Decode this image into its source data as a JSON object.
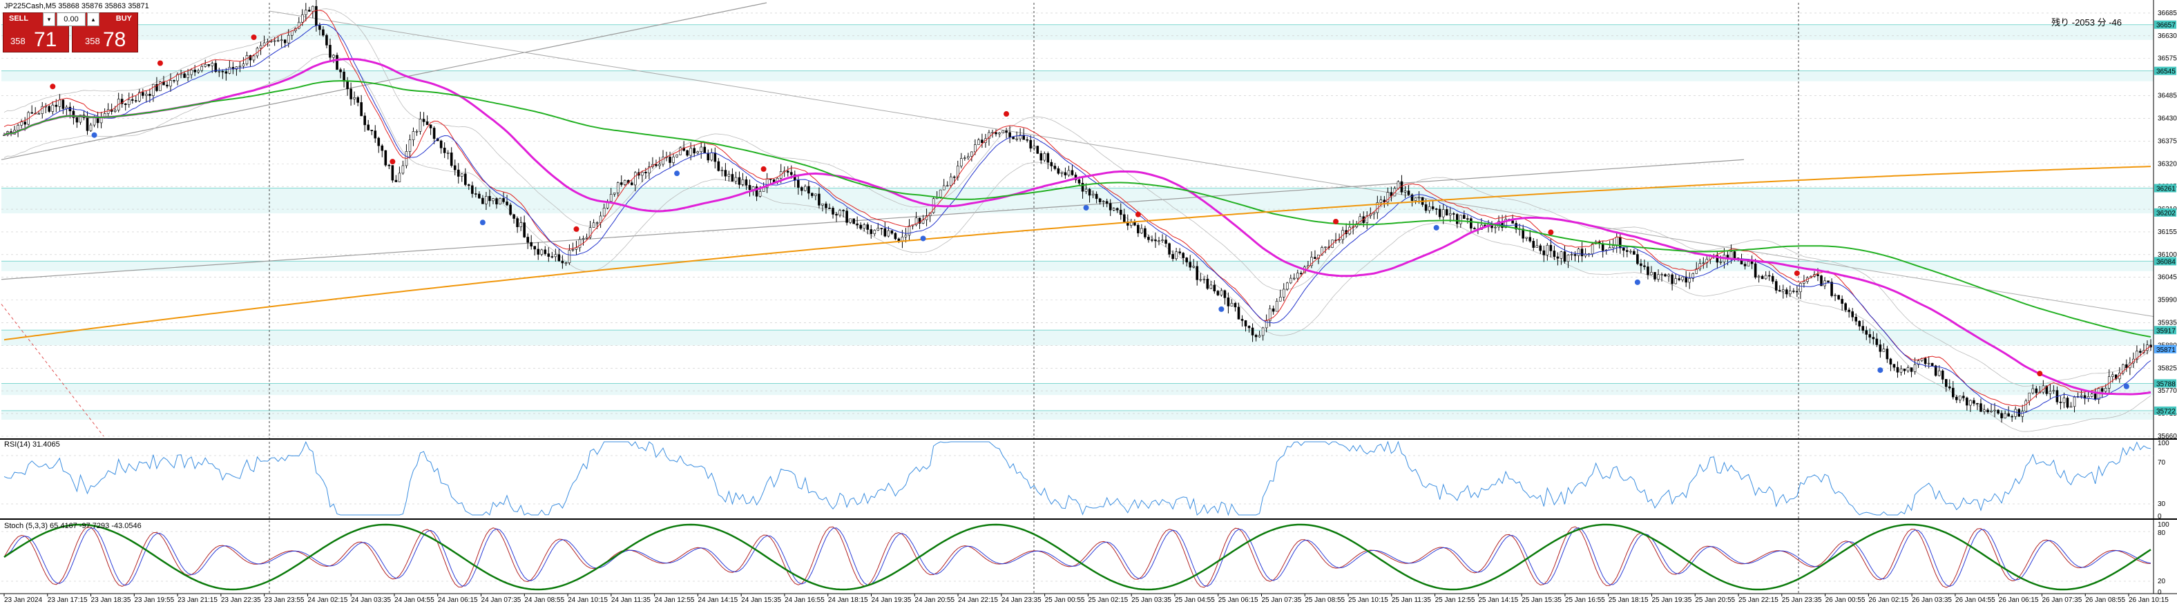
{
  "symbol_header": "JP225Cash,M5  35868 35876 35863 35871",
  "trade_panel": {
    "sell_label": "SELL",
    "buy_label": "BUY",
    "lot_value": "0.00",
    "sell_price_small": "358",
    "sell_price_big": "71",
    "buy_price_small": "358",
    "buy_price_big": "78"
  },
  "countdown": "残り -2053 分 -46",
  "rsi_title": "RSI(14) 31.4065",
  "stoch_title": "Stoch (5,3,3) 65.4167 -97.7293 -43.0546",
  "price_axis": [
    "36685",
    "36630",
    "36575",
    "36485",
    "36430",
    "36375",
    "36320",
    "36265",
    "36210",
    "36155",
    "36100",
    "36045",
    "35990",
    "35935",
    "35880",
    "35825",
    "35770",
    "35715",
    "35660"
  ],
  "right_badges": [
    {
      "text": "36657",
      "color": "#44c7c0"
    },
    {
      "text": "36545",
      "color": "#44c7c0"
    },
    {
      "text": "36261",
      "color": "#44c7c0"
    },
    {
      "text": "36202",
      "color": "#44c7c0"
    },
    {
      "text": "36084",
      "color": "#44c7c0"
    },
    {
      "text": "35917",
      "color": "#44c7c0"
    },
    {
      "text": "35871",
      "color": "#55aaff"
    },
    {
      "text": "35788",
      "color": "#44c7c0"
    },
    {
      "text": "35722",
      "color": "#44c7c0"
    }
  ],
  "rsi_axis": [
    "100",
    "70",
    "30",
    "0"
  ],
  "stoch_axis": [
    "100",
    "80",
    "20",
    "0"
  ],
  "time_axis": [
    "23 Jan 2024",
    "23 Jan 17:15",
    "23 Jan 18:35",
    "23 Jan 19:55",
    "23 Jan 21:15",
    "23 Jan 22:35",
    "23 Jan 23:55",
    "24 Jan 02:15",
    "24 Jan 03:35",
    "24 Jan 04:55",
    "24 Jan 06:15",
    "24 Jan 07:35",
    "24 Jan 08:55",
    "24 Jan 10:15",
    "24 Jan 11:35",
    "24 Jan 12:55",
    "24 Jan 14:15",
    "24 Jan 15:35",
    "24 Jan 16:55",
    "24 Jan 18:15",
    "24 Jan 19:35",
    "24 Jan 20:55",
    "24 Jan 22:15",
    "24 Jan 23:35",
    "25 Jan 00:55",
    "25 Jan 02:15",
    "25 Jan 03:35",
    "25 Jan 04:55",
    "25 Jan 06:15",
    "25 Jan 07:35",
    "25 Jan 08:55",
    "25 Jan 10:15",
    "25 Jan 11:35",
    "25 Jan 12:55",
    "25 Jan 14:15",
    "25 Jan 15:35",
    "25 Jan 16:55",
    "25 Jan 18:15",
    "25 Jan 19:35",
    "25 Jan 20:55",
    "25 Jan 22:15",
    "25 Jan 23:35",
    "26 Jan 00:55",
    "26 Jan 02:15",
    "26 Jan 03:35",
    "26 Jan 04:55",
    "26 Jan 06:15",
    "26 Jan 07:35",
    "26 Jan 08:55",
    "26 Jan 10:15"
  ],
  "chart_data": {
    "type": "line",
    "price_range": [
      35660,
      36710
    ],
    "price_path": [
      36390,
      36440,
      36470,
      36410,
      36460,
      36490,
      36520,
      36560,
      36540,
      36590,
      36620,
      36700,
      36540,
      36420,
      36280,
      36440,
      36330,
      36240,
      36220,
      36120,
      36080,
      36150,
      36260,
      36300,
      36340,
      36360,
      36290,
      36250,
      36310,
      36240,
      36200,
      36160,
      36140,
      36190,
      36290,
      36380,
      36400,
      36350,
      36300,
      36250,
      36200,
      36150,
      36100,
      36040,
      35980,
      35900,
      36040,
      36090,
      36150,
      36200,
      36270,
      36220,
      36190,
      36160,
      36180,
      36120,
      36090,
      36120,
      36130,
      36060,
      36030,
      36080,
      36100,
      36050,
      36000,
      36050,
      35980,
      35900,
      35820,
      35840,
      35760,
      35720,
      35700,
      35780,
      35740,
      35760,
      35830,
      35880
    ],
    "colors": {
      "magenta": "#e020d8",
      "green": "#22b022",
      "orange": "#f0960a",
      "blue": "#2233cc",
      "red": "#e02020",
      "candle": "#000000",
      "band": "#7fd7d0",
      "grid": "#c8c8c8"
    }
  }
}
